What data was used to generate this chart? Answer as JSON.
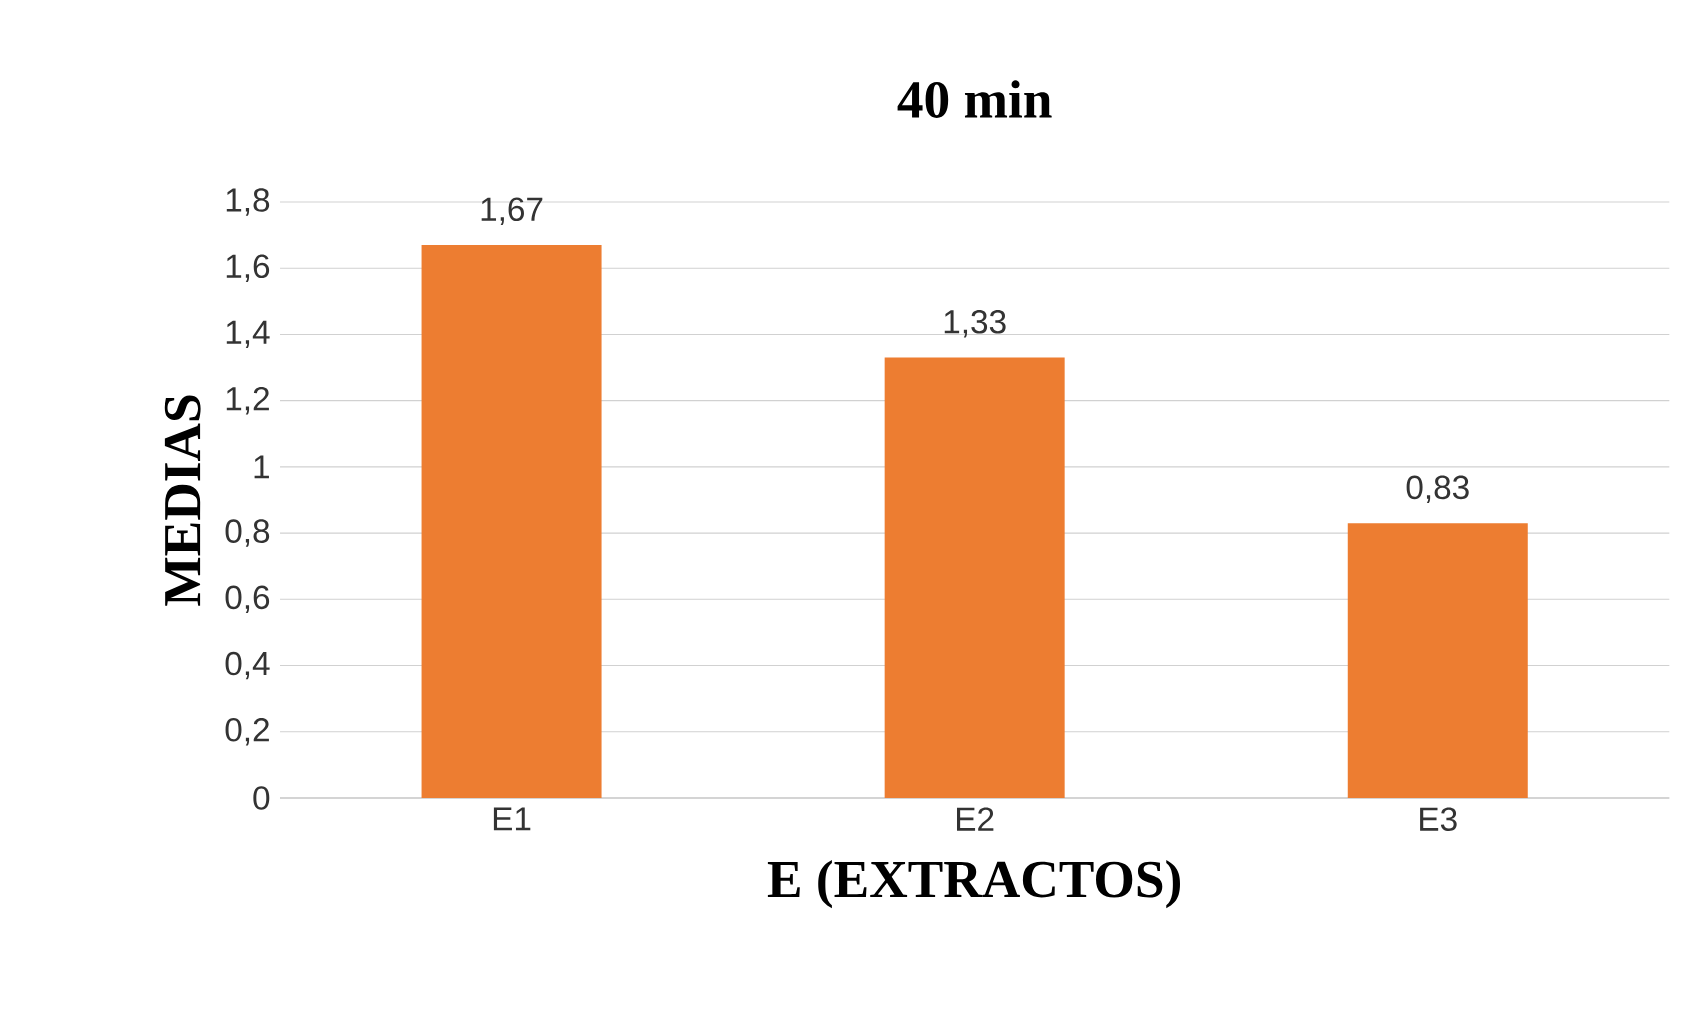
{
  "chart_data": {
    "type": "bar",
    "title": "40 min",
    "xlabel": "E (EXTRACTOS)",
    "ylabel": "MEDIAS",
    "categories": [
      "E1",
      "E2",
      "E3"
    ],
    "values": [
      1.67,
      1.33,
      0.83
    ],
    "value_labels": [
      "1,67",
      "1,33",
      "0,83"
    ],
    "color": "#ed7d31",
    "ylim": [
      0,
      1.8
    ],
    "yticks": [
      0,
      {
        "value": 0.2,
        "label": "0,2"
      },
      {
        "value": 0.4,
        "label": "0,4"
      },
      {
        "value": 0.6,
        "label": "0,6"
      },
      {
        "value": 0.8,
        "label": "0,8"
      },
      1,
      {
        "value": 1.2,
        "label": "1,2"
      },
      {
        "value": 1.4,
        "label": "1,4"
      },
      {
        "value": 1.6,
        "label": "1,6"
      },
      {
        "value": 1.8,
        "label": "1,8"
      }
    ],
    "grid": "y"
  }
}
